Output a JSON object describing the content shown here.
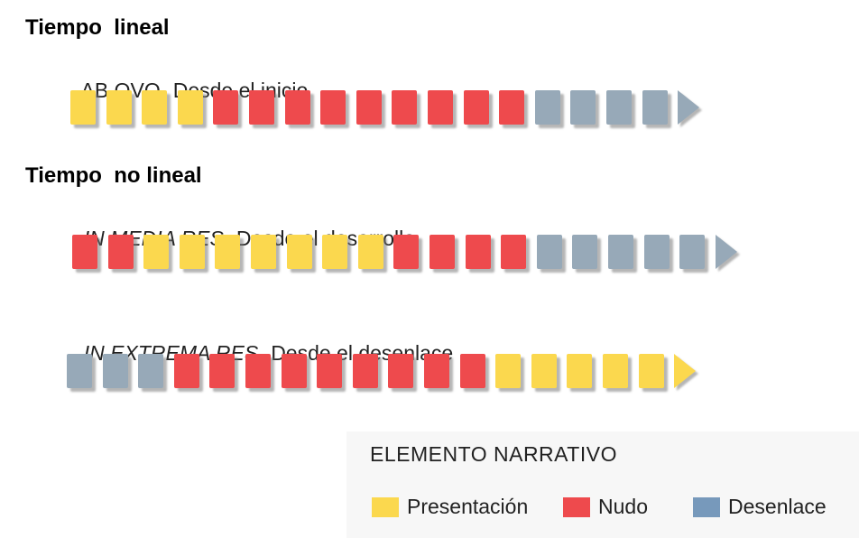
{
  "colors": {
    "yellow": "#fbd84e",
    "red": "#ee4a4d",
    "blue": "#97a9b8",
    "legend_blue": "#7799bb"
  },
  "linear": {
    "heading": "Tiempo  lineal",
    "rows": [
      {
        "term": "AB OVO",
        "description": "Desde el inicio",
        "sequence": [
          "yellow",
          "yellow",
          "yellow",
          "yellow",
          "red",
          "red",
          "red",
          "red",
          "red",
          "red",
          "red",
          "red",
          "red",
          "blue",
          "blue",
          "blue",
          "blue"
        ],
        "arrow": "blue"
      }
    ]
  },
  "nonlinear": {
    "heading": "Tiempo  no lineal",
    "rows": [
      {
        "term": "IN MEDIA RES",
        "description": "Desde el desarrollo",
        "sequence": [
          "red",
          "red",
          "yellow",
          "yellow",
          "yellow",
          "yellow",
          "yellow",
          "yellow",
          "yellow",
          "red",
          "red",
          "red",
          "red",
          "blue",
          "blue",
          "blue",
          "blue",
          "blue"
        ],
        "arrow": "blue"
      },
      {
        "term": "IN EXTREMA RES",
        "description": "Desde el desenlace",
        "sequence": [
          "blue",
          "blue",
          "blue",
          "red",
          "red",
          "red",
          "red",
          "red",
          "red",
          "red",
          "red",
          "red",
          "yellow",
          "yellow",
          "yellow",
          "yellow",
          "yellow"
        ],
        "arrow": "yellow"
      }
    ]
  },
  "legend": {
    "title": "ELEMENTO NARRATIVO",
    "items": [
      {
        "label": "Presentación",
        "color": "#fbd84e"
      },
      {
        "label": "Nudo",
        "color": "#ee4a4d"
      },
      {
        "label": "Desenlace",
        "color": "#7799bb"
      }
    ]
  }
}
